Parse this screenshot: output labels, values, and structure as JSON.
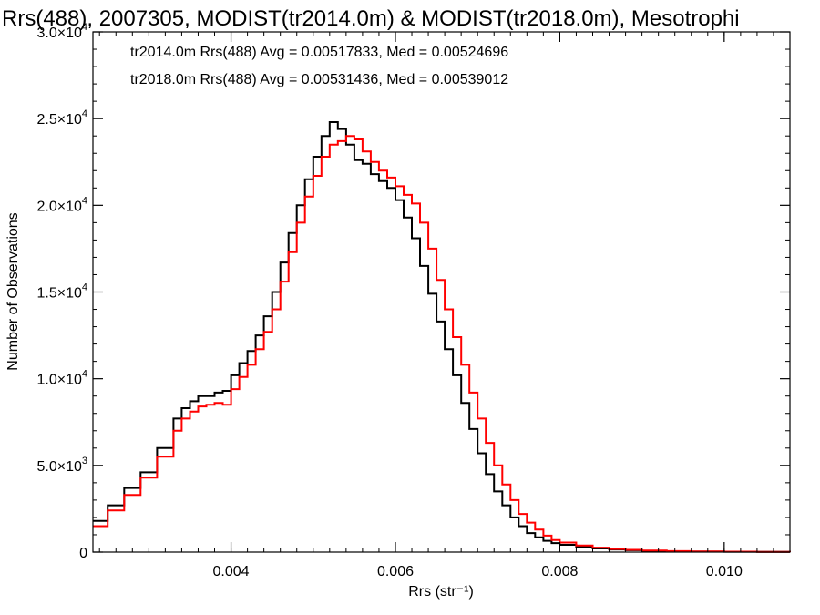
{
  "chart_data": {
    "type": "line",
    "title": "Rrs(488), 2007305, MODIST(tr2014.0m) & MODIST(tr2018.0m), Mesotrophi",
    "xlabel": "Rrs (str⁻¹)",
    "ylabel": "Number of Observations",
    "xlim": [
      0.00232,
      0.0108
    ],
    "ylim": [
      0,
      30000
    ],
    "x_ticks": [
      0.004,
      0.006,
      0.008,
      0.01
    ],
    "x_tick_labels": [
      "0.004",
      "0.006",
      "0.008",
      "0.010"
    ],
    "y_ticks": [
      0,
      5000,
      10000,
      15000,
      20000,
      25000,
      30000
    ],
    "y_tick_labels": [
      {
        "mant": "0",
        "exp": ""
      },
      {
        "mant": "5.0×10",
        "exp": "3"
      },
      {
        "mant": "1.0×10",
        "exp": "4"
      },
      {
        "mant": "1.5×10",
        "exp": "4"
      },
      {
        "mant": "2.0×10",
        "exp": "4"
      },
      {
        "mant": "2.5×10",
        "exp": "4"
      },
      {
        "mant": "3.0×10",
        "exp": "4"
      }
    ],
    "grid": false,
    "legend_position": "top-left",
    "step": true,
    "series": [
      {
        "name": "tr2014.0m",
        "legend_text": "tr2014.0m Rrs(488) Avg = 0.00517833, Med = 0.00524696",
        "color": "#000000",
        "x": [
          0.00232,
          0.0025,
          0.0027,
          0.0029,
          0.0031,
          0.0033,
          0.0034,
          0.0035,
          0.0036,
          0.0037,
          0.0038,
          0.0039,
          0.004,
          0.0041,
          0.0042,
          0.0043,
          0.0044,
          0.0045,
          0.0046,
          0.0047,
          0.0048,
          0.0049,
          0.005,
          0.0051,
          0.0052,
          0.0053,
          0.0054,
          0.0055,
          0.0056,
          0.0057,
          0.0058,
          0.0059,
          0.006,
          0.0061,
          0.0062,
          0.0063,
          0.0064,
          0.0065,
          0.0066,
          0.0067,
          0.0068,
          0.0069,
          0.007,
          0.0071,
          0.0072,
          0.0073,
          0.0074,
          0.0075,
          0.0076,
          0.0077,
          0.0078,
          0.0079,
          0.008,
          0.0082,
          0.0084,
          0.0086,
          0.0088,
          0.009,
          0.0093,
          0.0096,
          0.01,
          0.0104,
          0.0108
        ],
        "y": [
          1800,
          2700,
          3700,
          4600,
          6000,
          7700,
          8300,
          8700,
          9000,
          9000,
          9200,
          9300,
          10200,
          10900,
          11600,
          12500,
          13600,
          15000,
          16700,
          18400,
          20000,
          21500,
          22800,
          24000,
          24800,
          24400,
          23500,
          22600,
          22400,
          21800,
          21400,
          21000,
          20300,
          19300,
          18100,
          16500,
          14900,
          13300,
          11700,
          10200,
          8600,
          7100,
          5700,
          4500,
          3500,
          2700,
          2000,
          1500,
          1100,
          850,
          650,
          520,
          420,
          300,
          210,
          150,
          110,
          80,
          50,
          30,
          20,
          10,
          5
        ]
      },
      {
        "name": "tr2018.0m",
        "legend_text": "tr2018.0m Rrs(488) Avg = 0.00531436, Med = 0.00539012",
        "color": "#ff0000",
        "x": [
          0.00232,
          0.0025,
          0.0027,
          0.0029,
          0.0031,
          0.0033,
          0.0034,
          0.0035,
          0.0036,
          0.0037,
          0.0038,
          0.0039,
          0.004,
          0.0041,
          0.0042,
          0.0043,
          0.0044,
          0.0045,
          0.0046,
          0.0047,
          0.0048,
          0.0049,
          0.005,
          0.0051,
          0.0052,
          0.0053,
          0.0054,
          0.0055,
          0.0056,
          0.0057,
          0.0058,
          0.0059,
          0.006,
          0.0061,
          0.0062,
          0.0063,
          0.0064,
          0.0065,
          0.0066,
          0.0067,
          0.0068,
          0.0069,
          0.007,
          0.0071,
          0.0072,
          0.0073,
          0.0074,
          0.0075,
          0.0076,
          0.0077,
          0.0078,
          0.0079,
          0.008,
          0.0082,
          0.0084,
          0.0086,
          0.0088,
          0.009,
          0.0093,
          0.0096,
          0.01,
          0.0104,
          0.0108
        ],
        "y": [
          1500,
          2400,
          3300,
          4300,
          5500,
          7000,
          7700,
          8100,
          8400,
          8500,
          8600,
          8500,
          9400,
          10100,
          10800,
          11700,
          12700,
          14000,
          15600,
          17300,
          19000,
          20500,
          21700,
          22800,
          23500,
          23700,
          24000,
          23800,
          23100,
          22500,
          22000,
          21600,
          21100,
          20600,
          20100,
          19000,
          17500,
          15700,
          14000,
          12400,
          10800,
          9200,
          7700,
          6300,
          5000,
          3900,
          3000,
          2200,
          1700,
          1300,
          950,
          700,
          550,
          380,
          260,
          180,
          130,
          90,
          60,
          40,
          25,
          15,
          8
        ]
      }
    ]
  }
}
